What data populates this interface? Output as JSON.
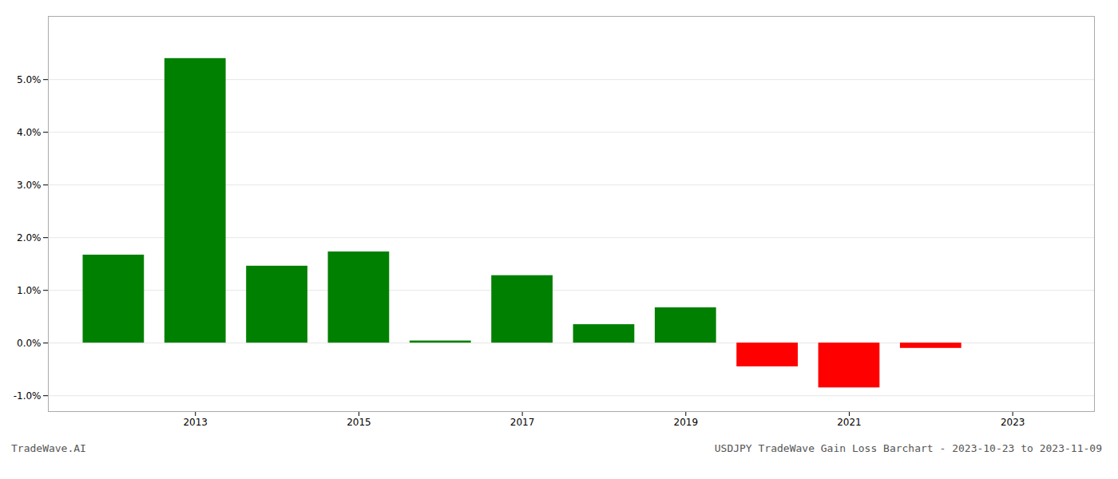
{
  "chart_data": {
    "type": "bar",
    "title": "USDJPY TradeWave Gain Loss Barchart - 2023-10-23 to 2023-11-09",
    "annotations": [
      "TradeWave.AI"
    ],
    "x": [
      2012,
      2013,
      2014,
      2015,
      2016,
      2017,
      2018,
      2019,
      2020,
      2021,
      2022
    ],
    "values": [
      0.0167,
      0.054,
      0.0146,
      0.0173,
      0.0004,
      0.0128,
      0.0035,
      0.0067,
      -0.0045,
      -0.0085,
      -0.001
    ],
    "colors": [
      "#008000",
      "#008000",
      "#008000",
      "#008000",
      "#008000",
      "#008000",
      "#008000",
      "#008000",
      "#ff0000",
      "#ff0000",
      "#ff0000"
    ],
    "xlim": [
      2011.2,
      2024.0
    ],
    "xticks": [
      2013,
      2015,
      2017,
      2019,
      2021,
      2023
    ],
    "ylim": [
      -0.013,
      0.062
    ],
    "yticks": [
      {
        "value": -0.01,
        "label": "-1.0%"
      },
      {
        "value": 0.0,
        "label": "0.0%"
      },
      {
        "value": 0.01,
        "label": "1.0%"
      },
      {
        "value": 0.02,
        "label": "2.0%"
      },
      {
        "value": 0.03,
        "label": "3.0%"
      },
      {
        "value": 0.04,
        "label": "4.0%"
      },
      {
        "value": 0.05,
        "label": "5.0%"
      }
    ],
    "grid": true
  }
}
